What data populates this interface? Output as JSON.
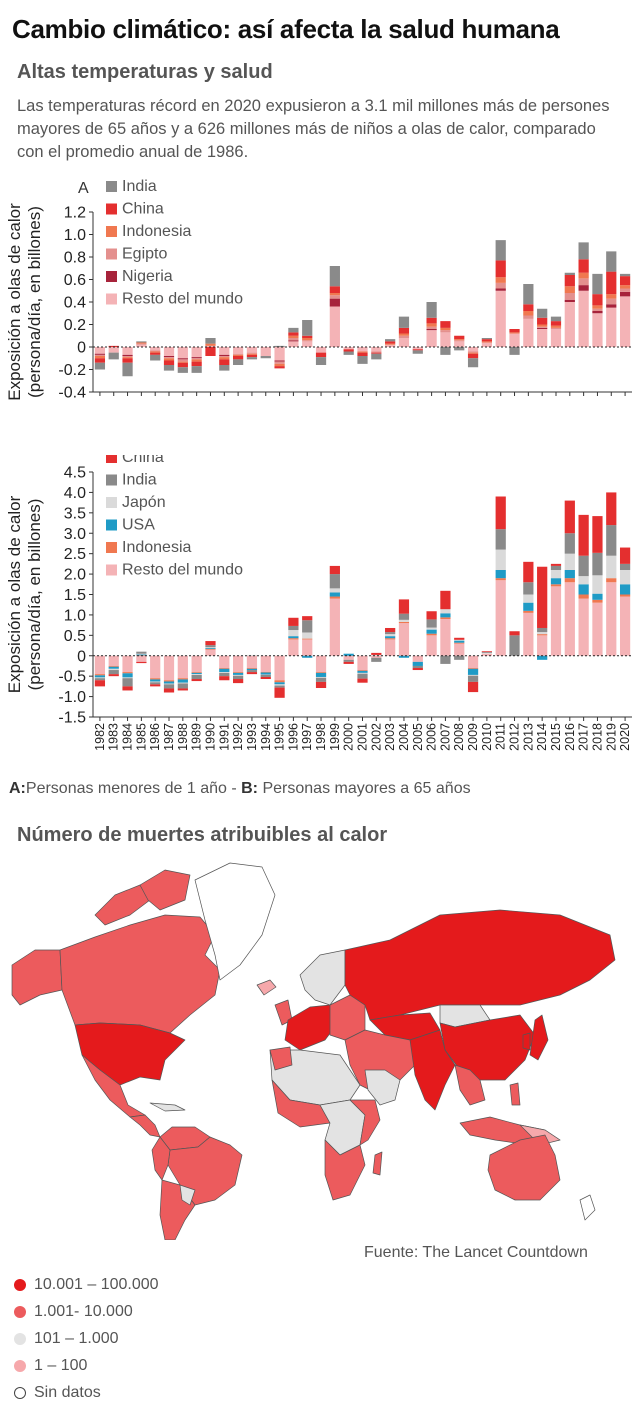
{
  "header": {
    "title": "Cambio climático: así afecta la salud humana",
    "subtitle": "Altas temperaturas y salud",
    "description": "Las temperaturas récord en 2020 expusieron a 3.1 mil millones más de persones mayores de 65 años y a 626 millones más de niños a olas de calor, comparado con el promedio anual de 1986."
  },
  "chart_data": [
    {
      "type": "bar",
      "stacked": true,
      "panel_label": "A",
      "ylabel_line1": "Exposición a olas de calor",
      "ylabel_line2": "(persona/día, en billones)",
      "ylim": [
        -0.4,
        1.2
      ],
      "yticks": [
        1.2,
        1.0,
        0.8,
        0.6,
        0.4,
        0.2,
        0,
        -0.2,
        -0.4
      ],
      "legend_position": "top-left",
      "categories": [
        "1982",
        "1983",
        "1984",
        "1985",
        "1986",
        "1987",
        "1988",
        "1989",
        "1990",
        "1991",
        "1992",
        "1993",
        "1994",
        "1995",
        "1996",
        "1997",
        "1998",
        "1999",
        "2000",
        "2001",
        "2002",
        "2003",
        "2004",
        "2005",
        "2006",
        "2007",
        "2008",
        "2009",
        "2010",
        "2011",
        "2012",
        "2013",
        "2014",
        "2015",
        "2016",
        "2017",
        "2018",
        "2019",
        "2020"
      ],
      "series": [
        {
          "name": "Resto del mundo",
          "color": "#f4b3b6",
          "values": [
            -0.06,
            -0.05,
            -0.07,
            0.02,
            -0.03,
            -0.08,
            -0.1,
            -0.09,
            0.01,
            -0.07,
            -0.06,
            -0.05,
            -0.08,
            -0.12,
            0.05,
            0.05,
            -0.05,
            0.36,
            -0.02,
            -0.04,
            -0.04,
            0.02,
            0.08,
            -0.02,
            0.15,
            0.13,
            0.05,
            -0.04,
            0.04,
            0.5,
            0.12,
            0.25,
            0.16,
            0.16,
            0.4,
            0.5,
            0.3,
            0.35,
            0.45
          ]
        },
        {
          "name": "Nigeria",
          "color": "#a7233b",
          "values": [
            -0.01,
            0,
            -0.01,
            0,
            0,
            -0.01,
            -0.01,
            -0.01,
            0,
            -0.01,
            0,
            0,
            0,
            -0.01,
            0.01,
            0,
            0,
            0.07,
            0,
            0,
            0,
            0,
            0,
            0,
            0.01,
            0,
            0,
            0,
            0,
            0.02,
            0,
            0,
            0.01,
            0,
            0.02,
            0.05,
            0.02,
            0.03,
            0.04
          ]
        },
        {
          "name": "Egipto",
          "color": "#e4908e",
          "values": [
            -0.01,
            0,
            -0.01,
            0.01,
            -0.01,
            -0.01,
            -0.02,
            -0.01,
            0,
            -0.01,
            -0.01,
            -0.01,
            0,
            -0.02,
            0.02,
            0.01,
            0,
            0.03,
            0,
            0,
            -0.01,
            0,
            0.02,
            0,
            0.02,
            0.02,
            0.01,
            -0.01,
            0,
            0.05,
            0,
            0.03,
            0.01,
            0.01,
            0.06,
            0.06,
            0.02,
            0.05,
            0.03
          ]
        },
        {
          "name": "Indonesia",
          "color": "#f07850",
          "values": [
            -0.02,
            0,
            -0.01,
            0.01,
            -0.01,
            -0.02,
            -0.01,
            -0.02,
            0.02,
            -0.02,
            -0.01,
            -0.01,
            0,
            -0.02,
            0.02,
            0.02,
            0,
            0.02,
            0,
            -0.01,
            0,
            0.01,
            0.02,
            0,
            0.03,
            0.02,
            0.01,
            -0.01,
            0.01,
            0.05,
            0.01,
            0.04,
            0.02,
            0.02,
            0.06,
            0.05,
            0.03,
            0.04,
            0.03
          ]
        },
        {
          "name": "China",
          "color": "#e42f2f",
          "values": [
            -0.04,
            0.01,
            -0.04,
            0,
            -0.02,
            -0.04,
            -0.04,
            -0.04,
            -0.08,
            -0.05,
            -0.03,
            -0.02,
            0,
            -0.02,
            0.03,
            0.02,
            -0.04,
            0.06,
            -0.02,
            -0.03,
            -0.01,
            0.02,
            0.05,
            -0.01,
            0.05,
            0.06,
            0.03,
            -0.04,
            0.02,
            0.15,
            0.03,
            0.06,
            0.06,
            0.04,
            0.1,
            0.12,
            0.1,
            0.2,
            0.08
          ]
        },
        {
          "name": "India",
          "color": "#8a8a8a",
          "values": [
            -0.06,
            -0.06,
            -0.12,
            0.01,
            -0.05,
            -0.05,
            -0.05,
            -0.06,
            0.05,
            -0.05,
            -0.05,
            -0.02,
            -0.02,
            0.01,
            0.04,
            0.14,
            -0.07,
            0.18,
            -0.03,
            -0.07,
            -0.05,
            0.02,
            0.1,
            -0.03,
            0.14,
            -0.07,
            -0.03,
            -0.08,
            0.01,
            0.18,
            -0.07,
            0.18,
            0.08,
            0.04,
            0.02,
            0.15,
            0.18,
            0.18,
            0.02
          ]
        }
      ]
    },
    {
      "type": "bar",
      "stacked": true,
      "panel_label": "B",
      "ylabel_line1": "Exposición a olas de calor",
      "ylabel_line2": "(persona/día, en billones)",
      "ylim": [
        -1.5,
        4.5
      ],
      "yticks": [
        4.5,
        4.0,
        3.5,
        3.0,
        2.5,
        2.0,
        1.5,
        1.0,
        0.5,
        0,
        -0.5,
        -1.0,
        -1.5
      ],
      "legend_position": "top-left",
      "categories": [
        "1982",
        "1983",
        "1984",
        "1985",
        "1986",
        "1987",
        "1988",
        "1989",
        "1990",
        "1991",
        "1992",
        "1993",
        "1994",
        "1995",
        "1996",
        "1997",
        "1998",
        "1999",
        "2000",
        "2001",
        "2002",
        "2003",
        "2004",
        "2005",
        "2006",
        "2007",
        "2008",
        "2009",
        "2010",
        "2011",
        "2012",
        "2013",
        "2014",
        "2015",
        "2016",
        "2017",
        "2018",
        "2019",
        "2020"
      ],
      "series": [
        {
          "name": "Resto del mundo",
          "color": "#f4b3b6",
          "values": [
            -0.45,
            -0.25,
            -0.4,
            -0.15,
            -0.55,
            -0.6,
            -0.55,
            -0.4,
            0.15,
            -0.3,
            -0.4,
            -0.3,
            -0.4,
            -0.6,
            0.4,
            0.4,
            -0.4,
            1.4,
            -0.1,
            -0.35,
            -0.05,
            0.4,
            0.8,
            -0.15,
            0.5,
            0.9,
            0.3,
            -0.3,
            0.05,
            1.85,
            0.0,
            1.05,
            0.5,
            1.7,
            1.8,
            1.4,
            1.3,
            1.8,
            1.45
          ]
        },
        {
          "name": "Indonesia",
          "color": "#f07850",
          "values": [
            -0.03,
            -0.02,
            -0.03,
            0.01,
            -0.03,
            -0.03,
            -0.03,
            -0.02,
            0.02,
            -0.02,
            -0.02,
            -0.02,
            -0.01,
            -0.05,
            0.03,
            0.02,
            -0.02,
            0.05,
            0,
            -0.02,
            0,
            0.03,
            0.03,
            0,
            0.04,
            0.04,
            0.02,
            -0.02,
            0,
            0.05,
            0,
            0.05,
            0.03,
            0.05,
            0.1,
            0.1,
            0.07,
            0.1,
            0.05
          ]
        },
        {
          "name": "USA",
          "color": "#1f9bc6",
          "values": [
            -0.05,
            -0.05,
            -0.1,
            0.02,
            -0.05,
            -0.05,
            -0.08,
            -0.03,
            0.02,
            -0.08,
            -0.05,
            -0.03,
            -0.05,
            -0.05,
            0.05,
            -0.05,
            -0.1,
            0.1,
            0.05,
            -0.05,
            0,
            0.05,
            -0.05,
            -0.1,
            0.1,
            0.1,
            0.05,
            -0.15,
            0,
            0.2,
            0,
            0.2,
            -0.1,
            0.15,
            0.2,
            0.25,
            0.15,
            0,
            0.25
          ]
        },
        {
          "name": "Japón",
          "color": "#dadada",
          "values": [
            -0.02,
            -0.03,
            -0.02,
            0.02,
            -0.02,
            -0.02,
            -0.02,
            -0.02,
            0.02,
            -0.02,
            -0.02,
            0.02,
            -0.01,
            -0.03,
            0.15,
            0.15,
            -0.02,
            0.1,
            0,
            -0.02,
            0.02,
            0.05,
            0.05,
            0,
            0.05,
            0.1,
            0.02,
            -0.02,
            0.02,
            0.5,
            0,
            0.2,
            0.05,
            0.2,
            0.4,
            0.2,
            0.45,
            0.55,
            0.35
          ]
        },
        {
          "name": "India",
          "color": "#8a8a8a",
          "values": [
            -0.05,
            -0.1,
            -0.2,
            0.05,
            -0.05,
            -0.1,
            -0.12,
            -0.1,
            0.05,
            -0.08,
            -0.08,
            -0.05,
            -0.05,
            -0.05,
            0.1,
            0.3,
            -0.1,
            0.35,
            -0.05,
            -0.12,
            -0.1,
            0.05,
            0.15,
            -0.05,
            0.2,
            -0.2,
            -0.1,
            -0.15,
            0.02,
            0.5,
            0.5,
            0.3,
            0.1,
            0.1,
            0.5,
            0.5,
            0.55,
            0.75,
            0.15
          ]
        },
        {
          "name": "China",
          "color": "#e42f2f",
          "values": [
            -0.15,
            -0.05,
            -0.1,
            -0.03,
            -0.05,
            -0.1,
            -0.05,
            -0.05,
            0.1,
            -0.1,
            -0.1,
            -0.05,
            -0.05,
            -0.25,
            0.2,
            0.1,
            -0.15,
            0.2,
            -0.05,
            -0.1,
            0.05,
            0.1,
            0.35,
            -0.05,
            0.2,
            0.45,
            0.05,
            -0.25,
            0.02,
            0.8,
            0.1,
            0.5,
            1.5,
            0.05,
            0.8,
            1.0,
            0.9,
            0.8,
            0.4
          ]
        }
      ]
    }
  ],
  "note": {
    "a_key": "A:",
    "a_text": "Personas menores de 1 año - ",
    "b_key": "B:",
    "b_text": "Personas mayores a 65 años"
  },
  "map": {
    "title": "Número de muertes atribuibles al calor",
    "source": "Fuente: The Lancet Countdown",
    "legend": [
      {
        "label": "10.001 – 100.000",
        "color": "#e41a1c"
      },
      {
        "label": "1.001- 10.000",
        "color": "#ec5b5d"
      },
      {
        "label": "101 – 1.000",
        "color": "#e3e3e3"
      },
      {
        "label": "1 – 100",
        "color": "#f6a8ab"
      },
      {
        "label": "Sin datos",
        "color": "#ffffff"
      }
    ]
  }
}
